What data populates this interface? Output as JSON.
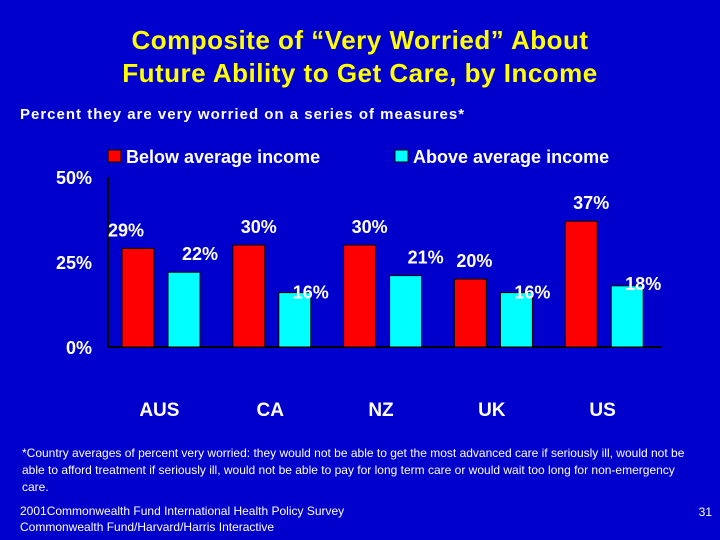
{
  "slide": {
    "title_line1": "Composite of “Very Worried” About",
    "title_line2": "Future Ability to Get Care, by Income",
    "subtitle": "Percent they are very worried on a series of measures*",
    "footnote": "*Country averages of percent very worried: they would not be able to get the most advanced care if seriously ill, would not be able to afford treatment if seriously ill, would not be able to pay for long term care  or would wait too long for non-emergency care.",
    "source_line1": "2001Commonwealth Fund International Health Policy Survey",
    "source_line2": "Commonwealth Fund/Harvard/Harris Interactive",
    "page_number": "31"
  },
  "colors": {
    "background": "#0000CC",
    "title": "#FFFF00",
    "text": "#FFFFFF",
    "below_series": "#FF0000",
    "above_series": "#00FFFF"
  },
  "chart_data": {
    "type": "bar",
    "categories": [
      "AUS",
      "CA",
      "NZ",
      "UK",
      "US"
    ],
    "series": [
      {
        "name": "Below average income",
        "values": [
          29,
          30,
          30,
          20,
          37
        ],
        "labels": [
          "29%",
          "30%",
          "30%",
          "20%",
          "37%"
        ]
      },
      {
        "name": "Above average income",
        "values": [
          22,
          16,
          21,
          16,
          18
        ],
        "labels": [
          "22%",
          "16%",
          "21%",
          "16%",
          "18%"
        ]
      }
    ],
    "yticks": [
      "0%",
      "25%",
      "50%"
    ],
    "ylim": [
      0,
      50
    ],
    "legend_position": "top",
    "grid": false
  }
}
